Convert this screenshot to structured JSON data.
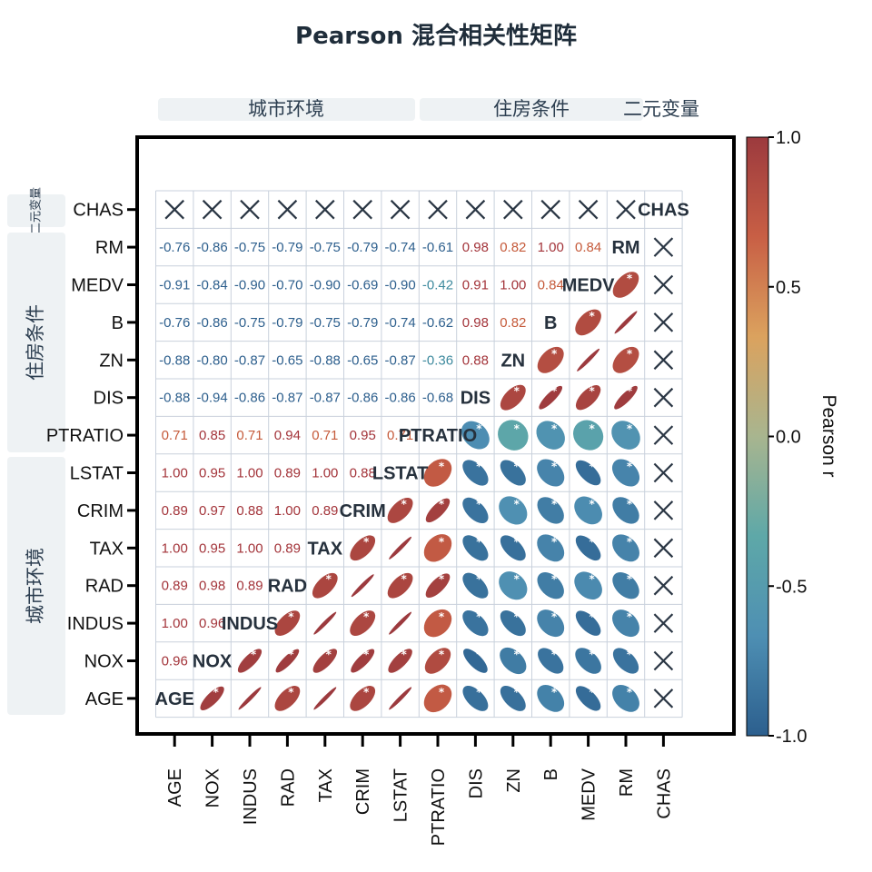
{
  "title": "Pearson 混合相关性矩阵",
  "groups_top": [
    {
      "label": "城市环境"
    },
    {
      "label": "住房条件"
    },
    {
      "label": "二元变量"
    }
  ],
  "groups_left": [
    {
      "label": "二元变量"
    },
    {
      "label": "住房条件"
    },
    {
      "label": "城市环境"
    }
  ],
  "colorbar": {
    "label": "Pearson r",
    "ticks": [
      "1.0",
      "0.5",
      "0.0",
      "-0.5",
      "-1.0"
    ],
    "colors": [
      "#2c5f8e",
      "#4e8fb3",
      "#5ea8a8",
      "#a8b58f",
      "#dba25e",
      "#c85f45",
      "#9c3a3e"
    ]
  },
  "chart_data": {
    "type": "heatmap",
    "variables": [
      "AGE",
      "NOX",
      "INDUS",
      "RAD",
      "TAX",
      "CRIM",
      "LSTAT",
      "PTRATIO",
      "DIS",
      "ZN",
      "B",
      "MEDV",
      "RM",
      "CHAS"
    ],
    "lower_triangle_labels": [
      {
        "row": "NOX",
        "values": [
          "0.96"
        ]
      },
      {
        "row": "INDUS",
        "values": [
          "1.00",
          "0.96"
        ]
      },
      {
        "row": "RAD",
        "values": [
          "0.89",
          "0.98",
          "0.89"
        ]
      },
      {
        "row": "TAX",
        "values": [
          "1.00",
          "0.95",
          "1.00",
          "0.89"
        ]
      },
      {
        "row": "CRIM",
        "values": [
          "0.89",
          "0.97",
          "0.88",
          "1.00",
          "0.89"
        ]
      },
      {
        "row": "LSTAT",
        "values": [
          "1.00",
          "0.95",
          "1.00",
          "0.89",
          "1.00",
          "0.88"
        ]
      },
      {
        "row": "PTRATIO",
        "values": [
          "0.71",
          "0.85",
          "0.71",
          "0.94",
          "0.71",
          "0.95",
          "0.71"
        ]
      },
      {
        "row": "DIS",
        "values": [
          "-0.88",
          "-0.94",
          "-0.86",
          "-0.87",
          "-0.87",
          "-0.86",
          "-0.86",
          "-0.68"
        ]
      },
      {
        "row": "ZN",
        "values": [
          "-0.88",
          "-0.80",
          "-0.87",
          "-0.65",
          "-0.88",
          "-0.65",
          "-0.87",
          "-0.36",
          "0.88"
        ]
      },
      {
        "row": "B",
        "values": [
          "-0.76",
          "-0.86",
          "-0.75",
          "-0.79",
          "-0.75",
          "-0.79",
          "-0.74",
          "-0.62",
          "0.98",
          "0.82"
        ]
      },
      {
        "row": "MEDV",
        "values": [
          "-0.91",
          "-0.84",
          "-0.90",
          "-0.70",
          "-0.90",
          "-0.69",
          "-0.90",
          "-0.42",
          "0.91",
          "1.00",
          "0.84"
        ]
      },
      {
        "row": "RM",
        "values": [
          "-0.76",
          "-0.86",
          "-0.75",
          "-0.79",
          "-0.75",
          "-0.79",
          "-0.74",
          "-0.61",
          "0.98",
          "0.82",
          "1.00",
          "0.84"
        ]
      }
    ],
    "binary_variable": "CHAS",
    "binary_cell_symbol": "×",
    "upper_triangle_encoding": "ellipse",
    "significance_marker": "*",
    "color_range": [
      -1.0,
      1.0
    ],
    "colorbar_label": "Pearson r"
  }
}
